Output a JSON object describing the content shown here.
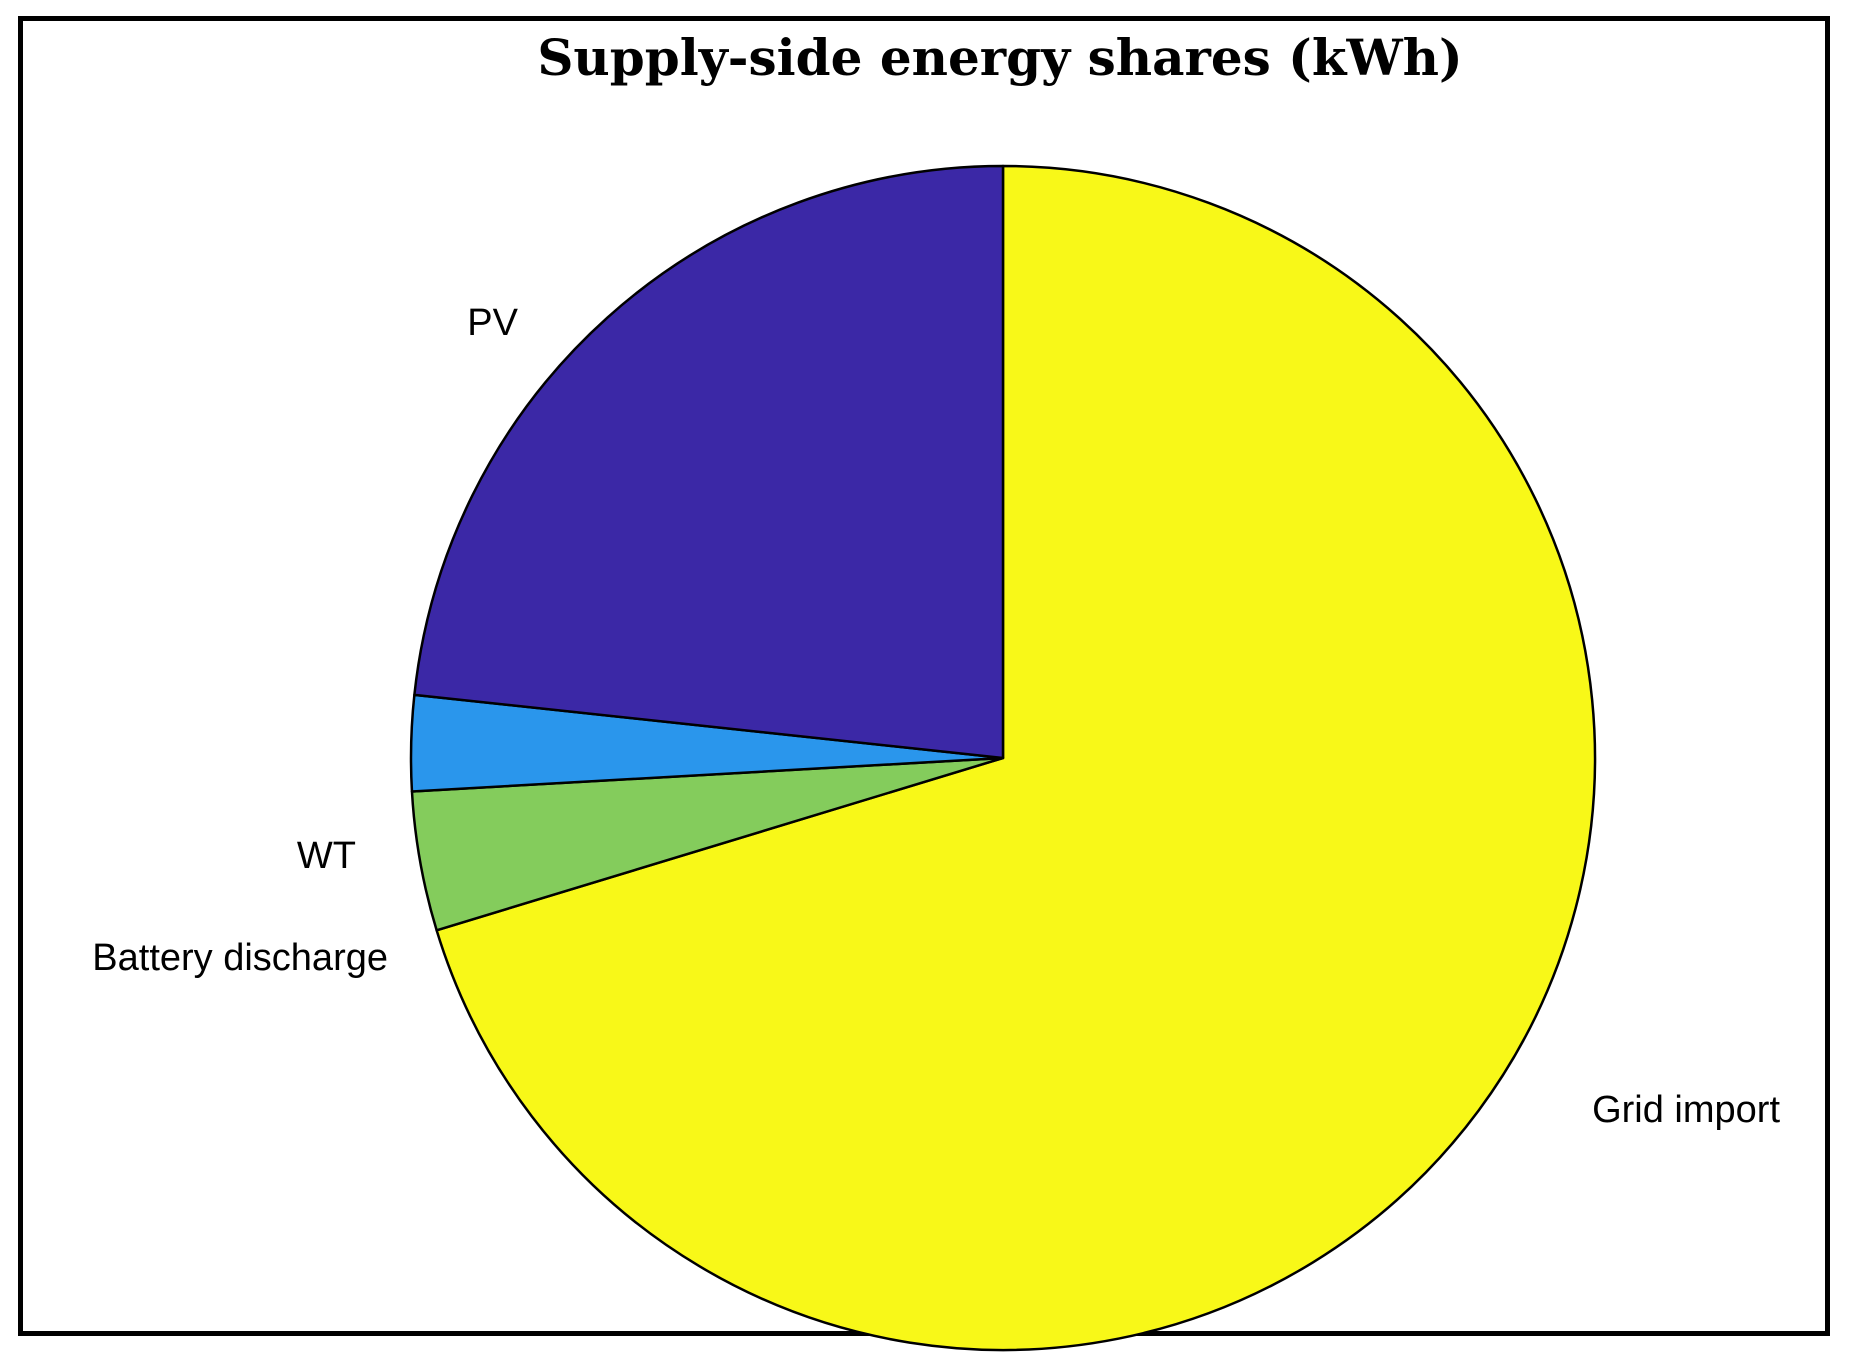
{
  "chart_data": {
    "type": "pie",
    "title": "Supply-side energy shares (kWh)",
    "slices": [
      {
        "label": "Grid import",
        "value": 70.3,
        "color": "#f8f818"
      },
      {
        "label": "Battery discharge",
        "value": 3.8,
        "color": "#84cc5c"
      },
      {
        "label": "WT",
        "value": 2.6,
        "color": "#2a96ec"
      },
      {
        "label": "PV",
        "value": 23.3,
        "color": "#3b28a6"
      }
    ],
    "start_angle_direction": "clockwise from top",
    "slice_edge_color": "#000000"
  }
}
